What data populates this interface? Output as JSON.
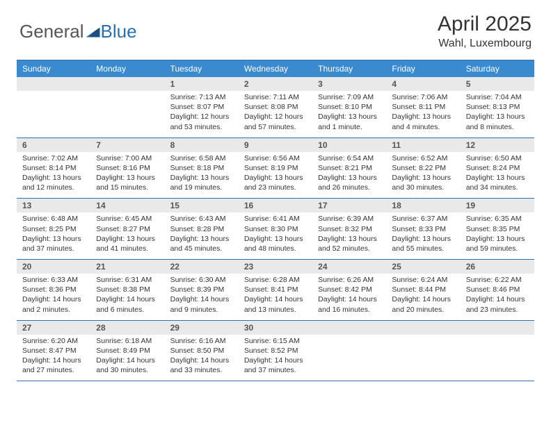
{
  "brand": {
    "word1": "General",
    "word2": "Blue"
  },
  "title": {
    "month": "April 2025",
    "location": "Wahl, Luxembourg"
  },
  "colors": {
    "header_bg": "#3a8acf",
    "rule": "#2a6fb0",
    "daynum_bg": "#e9e9e9",
    "text": "#333333",
    "dow_text": "#ffffff"
  },
  "dow": [
    "Sunday",
    "Monday",
    "Tuesday",
    "Wednesday",
    "Thursday",
    "Friday",
    "Saturday"
  ],
  "weeks": [
    [
      null,
      null,
      {
        "n": "1",
        "sr": "Sunrise: 7:13 AM",
        "ss": "Sunset: 8:07 PM",
        "dl": "Daylight: 12 hours and 53 minutes."
      },
      {
        "n": "2",
        "sr": "Sunrise: 7:11 AM",
        "ss": "Sunset: 8:08 PM",
        "dl": "Daylight: 12 hours and 57 minutes."
      },
      {
        "n": "3",
        "sr": "Sunrise: 7:09 AM",
        "ss": "Sunset: 8:10 PM",
        "dl": "Daylight: 13 hours and 1 minute."
      },
      {
        "n": "4",
        "sr": "Sunrise: 7:06 AM",
        "ss": "Sunset: 8:11 PM",
        "dl": "Daylight: 13 hours and 4 minutes."
      },
      {
        "n": "5",
        "sr": "Sunrise: 7:04 AM",
        "ss": "Sunset: 8:13 PM",
        "dl": "Daylight: 13 hours and 8 minutes."
      }
    ],
    [
      {
        "n": "6",
        "sr": "Sunrise: 7:02 AM",
        "ss": "Sunset: 8:14 PM",
        "dl": "Daylight: 13 hours and 12 minutes."
      },
      {
        "n": "7",
        "sr": "Sunrise: 7:00 AM",
        "ss": "Sunset: 8:16 PM",
        "dl": "Daylight: 13 hours and 15 minutes."
      },
      {
        "n": "8",
        "sr": "Sunrise: 6:58 AM",
        "ss": "Sunset: 8:18 PM",
        "dl": "Daylight: 13 hours and 19 minutes."
      },
      {
        "n": "9",
        "sr": "Sunrise: 6:56 AM",
        "ss": "Sunset: 8:19 PM",
        "dl": "Daylight: 13 hours and 23 minutes."
      },
      {
        "n": "10",
        "sr": "Sunrise: 6:54 AM",
        "ss": "Sunset: 8:21 PM",
        "dl": "Daylight: 13 hours and 26 minutes."
      },
      {
        "n": "11",
        "sr": "Sunrise: 6:52 AM",
        "ss": "Sunset: 8:22 PM",
        "dl": "Daylight: 13 hours and 30 minutes."
      },
      {
        "n": "12",
        "sr": "Sunrise: 6:50 AM",
        "ss": "Sunset: 8:24 PM",
        "dl": "Daylight: 13 hours and 34 minutes."
      }
    ],
    [
      {
        "n": "13",
        "sr": "Sunrise: 6:48 AM",
        "ss": "Sunset: 8:25 PM",
        "dl": "Daylight: 13 hours and 37 minutes."
      },
      {
        "n": "14",
        "sr": "Sunrise: 6:45 AM",
        "ss": "Sunset: 8:27 PM",
        "dl": "Daylight: 13 hours and 41 minutes."
      },
      {
        "n": "15",
        "sr": "Sunrise: 6:43 AM",
        "ss": "Sunset: 8:28 PM",
        "dl": "Daylight: 13 hours and 45 minutes."
      },
      {
        "n": "16",
        "sr": "Sunrise: 6:41 AM",
        "ss": "Sunset: 8:30 PM",
        "dl": "Daylight: 13 hours and 48 minutes."
      },
      {
        "n": "17",
        "sr": "Sunrise: 6:39 AM",
        "ss": "Sunset: 8:32 PM",
        "dl": "Daylight: 13 hours and 52 minutes."
      },
      {
        "n": "18",
        "sr": "Sunrise: 6:37 AM",
        "ss": "Sunset: 8:33 PM",
        "dl": "Daylight: 13 hours and 55 minutes."
      },
      {
        "n": "19",
        "sr": "Sunrise: 6:35 AM",
        "ss": "Sunset: 8:35 PM",
        "dl": "Daylight: 13 hours and 59 minutes."
      }
    ],
    [
      {
        "n": "20",
        "sr": "Sunrise: 6:33 AM",
        "ss": "Sunset: 8:36 PM",
        "dl": "Daylight: 14 hours and 2 minutes."
      },
      {
        "n": "21",
        "sr": "Sunrise: 6:31 AM",
        "ss": "Sunset: 8:38 PM",
        "dl": "Daylight: 14 hours and 6 minutes."
      },
      {
        "n": "22",
        "sr": "Sunrise: 6:30 AM",
        "ss": "Sunset: 8:39 PM",
        "dl": "Daylight: 14 hours and 9 minutes."
      },
      {
        "n": "23",
        "sr": "Sunrise: 6:28 AM",
        "ss": "Sunset: 8:41 PM",
        "dl": "Daylight: 14 hours and 13 minutes."
      },
      {
        "n": "24",
        "sr": "Sunrise: 6:26 AM",
        "ss": "Sunset: 8:42 PM",
        "dl": "Daylight: 14 hours and 16 minutes."
      },
      {
        "n": "25",
        "sr": "Sunrise: 6:24 AM",
        "ss": "Sunset: 8:44 PM",
        "dl": "Daylight: 14 hours and 20 minutes."
      },
      {
        "n": "26",
        "sr": "Sunrise: 6:22 AM",
        "ss": "Sunset: 8:46 PM",
        "dl": "Daylight: 14 hours and 23 minutes."
      }
    ],
    [
      {
        "n": "27",
        "sr": "Sunrise: 6:20 AM",
        "ss": "Sunset: 8:47 PM",
        "dl": "Daylight: 14 hours and 27 minutes."
      },
      {
        "n": "28",
        "sr": "Sunrise: 6:18 AM",
        "ss": "Sunset: 8:49 PM",
        "dl": "Daylight: 14 hours and 30 minutes."
      },
      {
        "n": "29",
        "sr": "Sunrise: 6:16 AM",
        "ss": "Sunset: 8:50 PM",
        "dl": "Daylight: 14 hours and 33 minutes."
      },
      {
        "n": "30",
        "sr": "Sunrise: 6:15 AM",
        "ss": "Sunset: 8:52 PM",
        "dl": "Daylight: 14 hours and 37 minutes."
      },
      null,
      null,
      null
    ]
  ]
}
